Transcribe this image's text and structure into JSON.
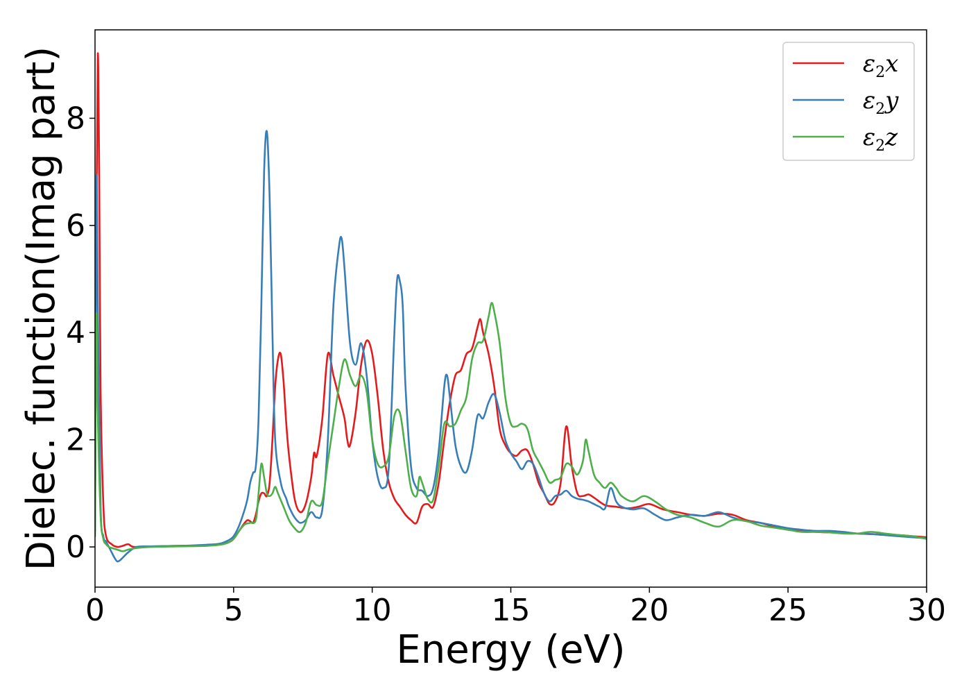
{
  "chart_data": {
    "type": "line",
    "title": "",
    "xlabel": "Energy (eV)",
    "ylabel": "Dielec. function(Imag part)",
    "xlim": [
      0,
      30
    ],
    "ylim": [
      -0.75,
      9.65
    ],
    "xticks": [
      0,
      5,
      10,
      15,
      20,
      25,
      30
    ],
    "xtick_labels": [
      "0",
      "5",
      "10",
      "15",
      "20",
      "25",
      "30"
    ],
    "yticks": [
      0,
      2,
      4,
      6,
      8
    ],
    "ytick_labels": [
      "0",
      "2",
      "4",
      "6",
      "8"
    ],
    "grid": false,
    "legend_position": "top-right",
    "series": [
      {
        "name": "ε₂x",
        "legend_base": "ε",
        "legend_sub": "2",
        "legend_suffix": "x",
        "color": "#e41a1c",
        "x": [
          0.0,
          0.05,
          0.1,
          0.15,
          0.2,
          0.3,
          0.4,
          0.6,
          0.8,
          1.0,
          1.2,
          1.4,
          2.0,
          3.0,
          4.0,
          4.5,
          4.8,
          5.0,
          5.2,
          5.4,
          5.5,
          5.6,
          5.7,
          5.8,
          5.9,
          6.0,
          6.1,
          6.2,
          6.3,
          6.4,
          6.5,
          6.6,
          6.7,
          6.8,
          6.9,
          7.0,
          7.2,
          7.4,
          7.6,
          7.8,
          7.9,
          8.0,
          8.2,
          8.4,
          8.6,
          8.8,
          9.0,
          9.1,
          9.2,
          9.4,
          9.6,
          9.8,
          10.0,
          10.2,
          10.4,
          10.6,
          10.8,
          11.0,
          11.2,
          11.4,
          11.6,
          11.8,
          12.0,
          12.2,
          12.4,
          12.6,
          12.8,
          13.0,
          13.2,
          13.4,
          13.6,
          13.8,
          13.9,
          14.0,
          14.2,
          14.4,
          14.6,
          14.8,
          15.0,
          15.2,
          15.4,
          15.6,
          15.8,
          16.0,
          16.2,
          16.4,
          16.6,
          16.8,
          17.0,
          17.2,
          17.4,
          17.6,
          17.8,
          18.0,
          18.4,
          18.8,
          19.2,
          19.6,
          20.0,
          20.5,
          21.0,
          21.5,
          22.0,
          22.5,
          23.0,
          23.5,
          24.0,
          24.5,
          25.0,
          25.5,
          26.0,
          26.5,
          27.0,
          27.5,
          28.0,
          28.5,
          29.0,
          29.5,
          30.0
        ],
        "y": [
          0.5,
          6.0,
          9.2,
          7.0,
          3.0,
          0.8,
          0.2,
          0.05,
          0.0,
          0.02,
          0.05,
          0.0,
          0.01,
          0.02,
          0.03,
          0.05,
          0.08,
          0.15,
          0.3,
          0.45,
          0.5,
          0.48,
          0.45,
          0.6,
          0.85,
          1.0,
          1.0,
          0.95,
          1.2,
          2.0,
          3.0,
          3.5,
          3.6,
          3.1,
          2.3,
          1.7,
          0.9,
          0.65,
          0.8,
          1.3,
          1.75,
          1.7,
          2.4,
          3.6,
          3.2,
          2.8,
          2.4,
          2.0,
          1.9,
          2.5,
          3.4,
          3.85,
          3.6,
          2.8,
          1.8,
          1.2,
          0.9,
          0.75,
          0.6,
          0.5,
          0.45,
          0.75,
          0.8,
          0.75,
          1.2,
          2.0,
          2.7,
          3.2,
          3.3,
          3.6,
          3.7,
          4.1,
          4.25,
          4.0,
          3.6,
          3.0,
          2.2,
          1.9,
          1.75,
          1.7,
          1.8,
          1.8,
          1.55,
          1.2,
          1.0,
          0.8,
          0.85,
          1.2,
          2.25,
          1.5,
          1.0,
          0.95,
          0.98,
          0.92,
          0.78,
          0.75,
          0.72,
          0.75,
          0.8,
          0.7,
          0.65,
          0.6,
          0.58,
          0.62,
          0.6,
          0.5,
          0.45,
          0.38,
          0.32,
          0.3,
          0.28,
          0.27,
          0.27,
          0.25,
          0.24,
          0.23,
          0.22,
          0.2,
          0.18
        ]
      },
      {
        "name": "ε₂y",
        "legend_base": "ε",
        "legend_sub": "2",
        "legend_suffix": "y",
        "color": "#377eb8",
        "x": [
          0.0,
          0.05,
          0.1,
          0.2,
          0.3,
          0.4,
          0.5,
          0.6,
          0.7,
          0.8,
          0.9,
          1.0,
          1.2,
          1.5,
          2.0,
          3.0,
          4.0,
          4.5,
          4.8,
          5.0,
          5.2,
          5.4,
          5.5,
          5.6,
          5.7,
          5.8,
          5.9,
          6.0,
          6.1,
          6.2,
          6.3,
          6.4,
          6.5,
          6.7,
          6.9,
          7.0,
          7.2,
          7.4,
          7.6,
          7.8,
          8.0,
          8.2,
          8.4,
          8.6,
          8.8,
          8.9,
          9.0,
          9.2,
          9.4,
          9.6,
          9.8,
          10.0,
          10.2,
          10.4,
          10.6,
          10.8,
          10.9,
          11.0,
          11.1,
          11.2,
          11.4,
          11.6,
          11.8,
          12.0,
          12.2,
          12.4,
          12.6,
          12.7,
          12.8,
          13.0,
          13.2,
          13.4,
          13.6,
          13.8,
          14.0,
          14.2,
          14.4,
          14.6,
          14.8,
          15.0,
          15.2,
          15.4,
          15.6,
          15.8,
          16.0,
          16.2,
          16.4,
          16.6,
          16.8,
          17.0,
          17.2,
          17.4,
          17.6,
          17.8,
          18.0,
          18.2,
          18.4,
          18.6,
          18.8,
          19.0,
          19.4,
          19.8,
          20.2,
          20.6,
          21.0,
          21.5,
          22.0,
          22.5,
          23.0,
          23.5,
          24.0,
          24.5,
          25.0,
          25.5,
          26.0,
          26.5,
          27.0,
          27.5,
          28.0,
          28.5,
          29.0,
          29.5,
          30.0
        ],
        "y": [
          0.3,
          6.8,
          4.5,
          0.8,
          0.2,
          0.1,
          0.0,
          -0.1,
          -0.2,
          -0.27,
          -0.25,
          -0.2,
          -0.1,
          0.0,
          0.01,
          0.02,
          0.04,
          0.06,
          0.12,
          0.2,
          0.4,
          0.7,
          0.9,
          1.2,
          1.38,
          1.5,
          2.4,
          4.5,
          7.0,
          7.75,
          6.5,
          4.0,
          2.0,
          1.2,
          0.9,
          0.75,
          0.55,
          0.45,
          0.5,
          0.65,
          0.55,
          0.7,
          2.0,
          4.5,
          5.6,
          5.75,
          5.2,
          3.8,
          3.4,
          3.8,
          3.2,
          2.0,
          1.3,
          1.1,
          1.5,
          4.0,
          5.0,
          4.95,
          4.5,
          3.0,
          1.5,
          1.1,
          1.05,
          0.95,
          1.1,
          1.8,
          3.0,
          3.2,
          2.8,
          1.9,
          1.5,
          1.4,
          1.8,
          2.45,
          2.4,
          2.7,
          2.85,
          2.5,
          2.0,
          1.75,
          1.6,
          1.45,
          1.6,
          1.55,
          1.3,
          1.0,
          0.85,
          0.95,
          0.98,
          1.05,
          0.95,
          0.9,
          0.88,
          0.85,
          0.8,
          0.75,
          0.72,
          1.1,
          0.85,
          0.75,
          0.7,
          0.72,
          0.6,
          0.5,
          0.55,
          0.6,
          0.58,
          0.65,
          0.55,
          0.48,
          0.45,
          0.4,
          0.35,
          0.32,
          0.3,
          0.3,
          0.28,
          0.25,
          0.24,
          0.22,
          0.2,
          0.18,
          0.16
        ]
      },
      {
        "name": "ε₂z",
        "legend_base": "ε",
        "legend_sub": "2",
        "legend_suffix": "z",
        "color": "#4daf4a",
        "x": [
          0.0,
          0.05,
          0.1,
          0.2,
          0.3,
          0.4,
          0.5,
          0.6,
          0.8,
          1.0,
          1.2,
          1.5,
          2.0,
          3.0,
          4.0,
          4.5,
          4.8,
          5.0,
          5.2,
          5.4,
          5.6,
          5.8,
          5.9,
          6.0,
          6.1,
          6.2,
          6.3,
          6.4,
          6.5,
          6.6,
          6.8,
          7.0,
          7.2,
          7.4,
          7.6,
          7.8,
          8.0,
          8.2,
          8.4,
          8.6,
          8.8,
          9.0,
          9.2,
          9.4,
          9.6,
          9.8,
          10.0,
          10.2,
          10.4,
          10.6,
          10.8,
          11.0,
          11.2,
          11.4,
          11.6,
          11.7,
          11.8,
          12.0,
          12.2,
          12.4,
          12.6,
          12.8,
          13.0,
          13.2,
          13.4,
          13.6,
          13.8,
          14.0,
          14.2,
          14.3,
          14.4,
          14.6,
          14.8,
          15.0,
          15.2,
          15.4,
          15.6,
          15.8,
          16.0,
          16.2,
          16.4,
          16.6,
          16.8,
          17.0,
          17.2,
          17.4,
          17.6,
          17.7,
          17.8,
          18.0,
          18.2,
          18.4,
          18.6,
          18.8,
          19.0,
          19.4,
          19.8,
          20.2,
          20.6,
          21.0,
          21.5,
          22.0,
          22.5,
          23.0,
          23.5,
          24.0,
          24.5,
          25.0,
          25.5,
          26.0,
          26.5,
          27.0,
          27.5,
          28.0,
          28.5,
          29.0,
          29.5,
          30.0
        ],
        "y": [
          0.2,
          4.3,
          2.5,
          0.6,
          0.15,
          0.05,
          0.0,
          -0.02,
          -0.05,
          -0.08,
          -0.05,
          -0.02,
          0.0,
          0.01,
          0.02,
          0.04,
          0.08,
          0.15,
          0.3,
          0.42,
          0.45,
          0.5,
          1.0,
          1.55,
          1.3,
          1.0,
          0.95,
          1.0,
          1.12,
          1.0,
          0.75,
          0.5,
          0.35,
          0.28,
          0.45,
          0.85,
          0.78,
          0.85,
          1.6,
          2.3,
          3.0,
          3.5,
          3.2,
          3.0,
          3.2,
          2.9,
          2.0,
          1.55,
          1.5,
          1.7,
          2.45,
          2.5,
          1.8,
          1.1,
          0.95,
          1.3,
          1.2,
          0.9,
          0.88,
          1.5,
          2.3,
          2.25,
          2.3,
          2.55,
          2.8,
          3.5,
          3.8,
          3.85,
          4.3,
          4.55,
          4.4,
          3.8,
          2.8,
          2.3,
          2.25,
          2.3,
          2.2,
          1.8,
          1.6,
          1.4,
          1.2,
          1.25,
          1.3,
          1.55,
          1.5,
          1.35,
          1.6,
          2.0,
          1.8,
          1.35,
          1.2,
          1.1,
          1.2,
          1.1,
          0.95,
          0.85,
          0.95,
          0.85,
          0.7,
          0.6,
          0.55,
          0.45,
          0.38,
          0.5,
          0.48,
          0.4,
          0.36,
          0.32,
          0.28,
          0.28,
          0.27,
          0.25,
          0.25,
          0.28,
          0.25,
          0.22,
          0.2,
          0.15
        ]
      }
    ]
  }
}
